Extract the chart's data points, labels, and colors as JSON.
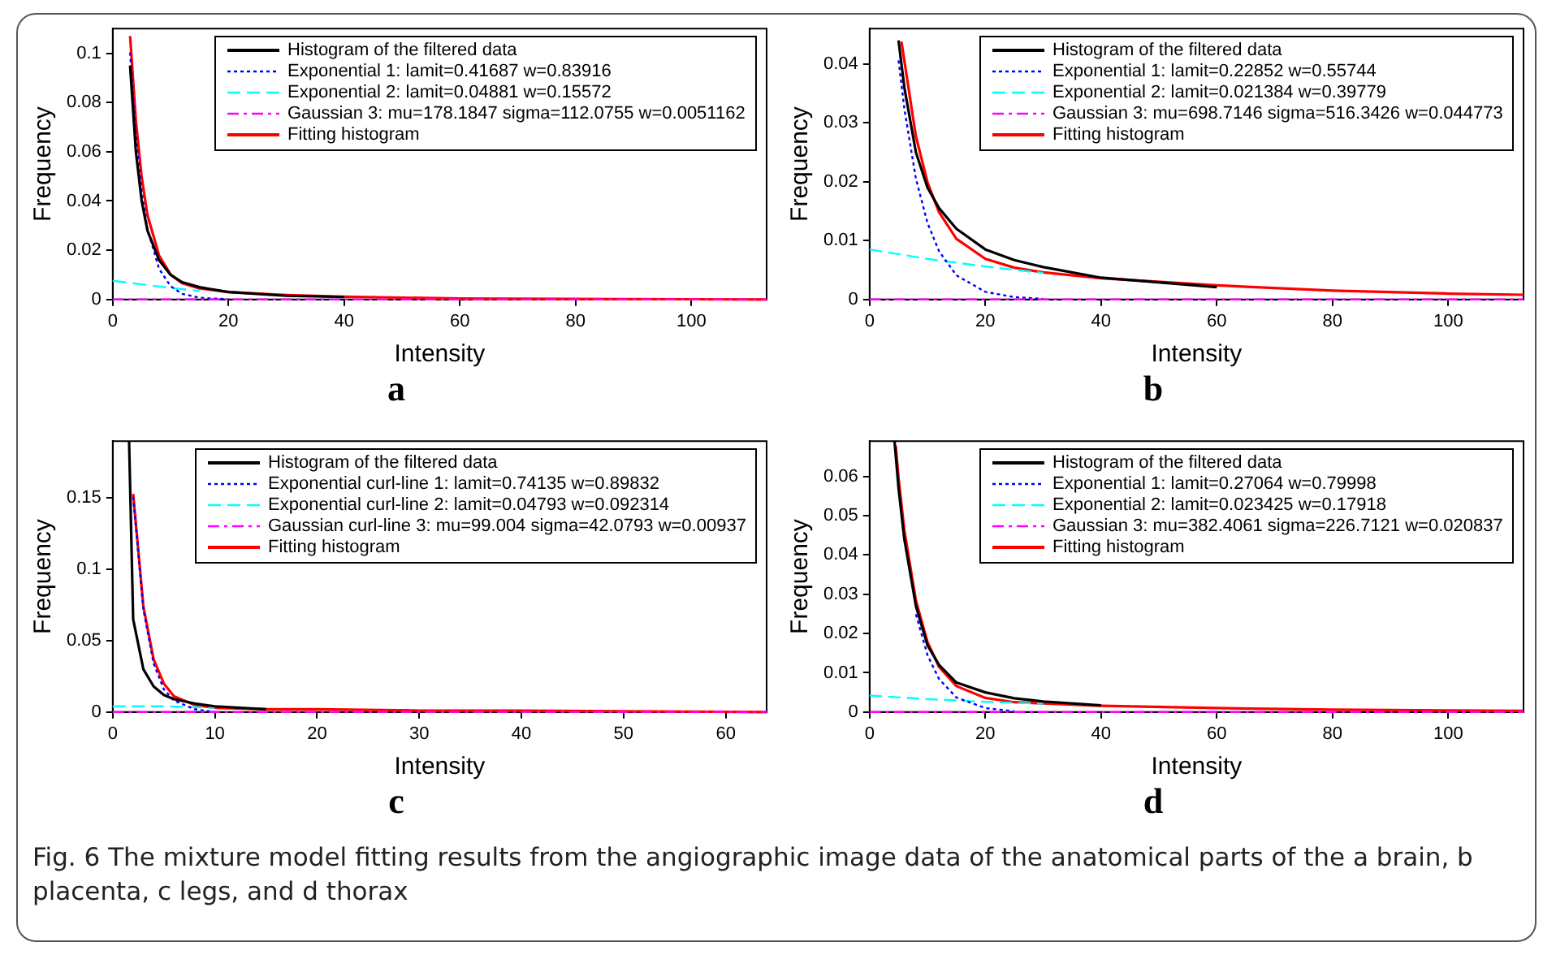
{
  "chart_data": [
    {
      "type": "line",
      "title": "a",
      "xlabel": "Intensity",
      "ylabel": "Frequency",
      "xlim": [
        0,
        113
      ],
      "xticks": [
        0,
        20,
        40,
        60,
        80,
        100
      ],
      "ylim": [
        0,
        0.11
      ],
      "yticks": [
        0,
        0.02,
        0.04,
        0.06,
        0.08,
        0.1
      ],
      "grid": false,
      "legend": "top right",
      "marker": "none",
      "series": [
        {
          "name": "Histogram of the filtered data",
          "color": "#000000",
          "line_style": "solid",
          "x": [
            3,
            4,
            5,
            6,
            8,
            10,
            12,
            15,
            20,
            30,
            40
          ],
          "values": [
            0.095,
            0.06,
            0.04,
            0.028,
            0.016,
            0.01,
            0.007,
            0.005,
            0.003,
            0.0015,
            0.001
          ]
        },
        {
          "name": "Exponential 1: lamit=0.41687 w=0.83916",
          "color": "#0000ff",
          "line_style": "dotted",
          "x": [
            3,
            4,
            5,
            6,
            8,
            10,
            12,
            15,
            20
          ],
          "values": [
            0.1003,
            0.0662,
            0.0437,
            0.0287,
            0.0125,
            0.0054,
            0.0023,
            0.0007,
            0.0001
          ]
        },
        {
          "name": "Exponential 2: lamit=0.04881 w=0.15572",
          "color": "#00ffff",
          "line_style": "dashed",
          "x": [
            0,
            10,
            15
          ],
          "values": [
            0.0076,
            0.0047,
            0.0035
          ]
        },
        {
          "name": "Gaussian 3: mu=178.1847 sigma=112.0755 w=0.0051162",
          "color": "#ff00ff",
          "line_style": "dashdot",
          "x": [
            0,
            113
          ],
          "values": [
            0,
            0
          ]
        },
        {
          "name": "Fitting histogram",
          "color": "#ff0000",
          "line_style": "solid",
          "x": [
            3,
            4,
            5,
            6,
            8,
            10,
            12,
            15,
            20,
            30,
            40,
            60,
            80,
            100,
            113
          ],
          "values": [
            0.107,
            0.0726,
            0.0497,
            0.0343,
            0.0179,
            0.0101,
            0.0066,
            0.0045,
            0.003,
            0.0018,
            0.0011,
            0.0004,
            0.0002,
            0.0001,
            0
          ]
        }
      ]
    },
    {
      "type": "line",
      "title": "b",
      "xlabel": "Intensity",
      "ylabel": "Frequency",
      "xlim": [
        0,
        113
      ],
      "xticks": [
        0,
        20,
        40,
        60,
        80,
        100
      ],
      "ylim": [
        0,
        0.046
      ],
      "yticks": [
        0,
        0.01,
        0.02,
        0.03,
        0.04
      ],
      "grid": false,
      "legend": "top right",
      "marker": "none",
      "series": [
        {
          "name": "Histogram of the filtered data",
          "color": "#000000",
          "line_style": "solid",
          "x": [
            5,
            6,
            8,
            10,
            12,
            15,
            20,
            25,
            30,
            40,
            60
          ],
          "values": [
            0.044,
            0.036,
            0.025,
            0.019,
            0.0155,
            0.012,
            0.0085,
            0.0067,
            0.0055,
            0.0037,
            0.0021
          ]
        },
        {
          "name": "Exponential 1: lamit=0.22852 w=0.55744",
          "color": "#0000ff",
          "line_style": "dotted",
          "x": [
            5,
            6,
            8,
            10,
            12,
            15,
            20,
            25,
            30
          ],
          "values": [
            0.0406,
            0.0324,
            0.0205,
            0.013,
            0.0082,
            0.0041,
            0.0013,
            0.0004,
            0.0001
          ]
        },
        {
          "name": "Exponential 2: lamit=0.021384 w=0.39779",
          "color": "#00ffff",
          "line_style": "dashed",
          "x": [
            0,
            10,
            20,
            30
          ],
          "values": [
            0.0085,
            0.0069,
            0.0056,
            0.0045
          ]
        },
        {
          "name": "Gaussian 3: mu=698.7146 sigma=516.3426 w=0.044773",
          "color": "#ff00ff",
          "line_style": "dashdot",
          "x": [
            0,
            113
          ],
          "values": [
            0,
            0
          ]
        },
        {
          "name": "Fitting histogram",
          "color": "#ff0000",
          "line_style": "solid",
          "x": [
            5.5,
            8,
            10,
            12,
            15,
            20,
            25,
            30,
            40,
            60,
            80,
            100,
            113
          ],
          "values": [
            0.0438,
            0.0277,
            0.0199,
            0.0148,
            0.0103,
            0.0069,
            0.0054,
            0.0046,
            0.0036,
            0.0024,
            0.0015,
            0.001,
            0.0008
          ]
        }
      ]
    },
    {
      "type": "line",
      "title": "c",
      "xlabel": "Intensity",
      "ylabel": "Frequency",
      "xlim": [
        0,
        64
      ],
      "xticks": [
        0,
        10,
        20,
        30,
        40,
        50,
        60
      ],
      "ylim": [
        0,
        0.19
      ],
      "yticks": [
        0,
        0.05,
        0.1,
        0.15
      ],
      "grid": false,
      "legend": "top right",
      "marker": "none",
      "series": [
        {
          "name": "Histogram of the filtered data",
          "color": "#000000",
          "line_style": "solid",
          "x": [
            1.6,
            2,
            3,
            4,
            5,
            6,
            8,
            10,
            15
          ],
          "values": [
            0.19,
            0.065,
            0.03,
            0.018,
            0.012,
            0.009,
            0.006,
            0.004,
            0.002
          ]
        },
        {
          "name": "Exponential curl-line 1: lamit=0.74135 w=0.89832",
          "color": "#0000ff",
          "line_style": "dotted",
          "x": [
            2,
            3,
            4,
            5,
            6,
            8,
            10
          ],
          "values": [
            0.151,
            0.072,
            0.034,
            0.016,
            0.008,
            0.002,
            0
          ]
        },
        {
          "name": "Exponential curl-line 2: lamit=0.04793 w=0.092314",
          "color": "#00ffff",
          "line_style": "dashed",
          "x": [
            0,
            5,
            10
          ],
          "values": [
            0.004,
            0.004,
            0.003
          ]
        },
        {
          "name": "Gaussian curl-line 3: mu=99.004 sigma=42.0793 w=0.00937",
          "color": "#ff00ff",
          "line_style": "dashdot",
          "x": [
            0,
            64
          ],
          "values": [
            0,
            0
          ]
        },
        {
          "name": "Fitting histogram",
          "color": "#ff0000",
          "line_style": "solid",
          "x": [
            2,
            3,
            4,
            5,
            6,
            8,
            10,
            15,
            20,
            30,
            40,
            64
          ],
          "values": [
            0.153,
            0.074,
            0.037,
            0.02,
            0.011,
            0.005,
            0.003,
            0.002,
            0.002,
            0.001,
            0.001,
            0
          ]
        }
      ]
    },
    {
      "type": "line",
      "title": "d",
      "xlabel": "Intensity",
      "ylabel": "Frequency",
      "xlim": [
        0,
        113
      ],
      "xticks": [
        0,
        20,
        40,
        60,
        80,
        100
      ],
      "ylim": [
        0,
        0.069
      ],
      "yticks": [
        0,
        0.01,
        0.02,
        0.03,
        0.04,
        0.05,
        0.06
      ],
      "grid": false,
      "legend": "top right",
      "marker": "none",
      "annotations": [
        "Fig. 6  The mixture model fitting results from the angiographic image data of the anatomical parts of the a brain, b placenta, c legs, and d thorax"
      ],
      "series": [
        {
          "name": "Histogram of the filtered data",
          "color": "#000000",
          "line_style": "solid",
          "x": [
            4.3,
            5,
            6,
            8,
            10,
            12,
            15,
            20,
            25,
            30,
            40
          ],
          "values": [
            0.069,
            0.057,
            0.044,
            0.027,
            0.017,
            0.012,
            0.0075,
            0.005,
            0.0035,
            0.0027,
            0.0017
          ]
        },
        {
          "name": "Exponential 1: lamit=0.27064 w=0.79998",
          "color": "#0000ff",
          "line_style": "dotted",
          "x": [
            8,
            10,
            12,
            15,
            20,
            25
          ],
          "values": [
            0.0249,
            0.0145,
            0.0084,
            0.0037,
            0.001,
            0.0002
          ]
        },
        {
          "name": "Exponential 2: lamit=0.023425 w=0.17918",
          "color": "#00ffff",
          "line_style": "dashed",
          "x": [
            0,
            10,
            20,
            30
          ],
          "values": [
            0.0042,
            0.0033,
            0.0026,
            0.0021
          ]
        },
        {
          "name": "Gaussian 3: mu=382.4061 sigma=226.7121 w=0.020837",
          "color": "#ff00ff",
          "line_style": "dashdot",
          "x": [
            0,
            113
          ],
          "values": [
            0,
            0
          ]
        },
        {
          "name": "Fitting histogram",
          "color": "#ff0000",
          "line_style": "solid",
          "x": [
            4.5,
            5,
            6,
            8,
            10,
            12,
            15,
            20,
            25,
            30,
            40,
            60,
            80,
            100,
            113
          ],
          "values": [
            0.0679,
            0.0596,
            0.0463,
            0.0284,
            0.0178,
            0.0115,
            0.0066,
            0.0036,
            0.0025,
            0.0022,
            0.0016,
            0.001,
            0.0006,
            0.0004,
            0.0003
          ]
        }
      ]
    }
  ]
}
